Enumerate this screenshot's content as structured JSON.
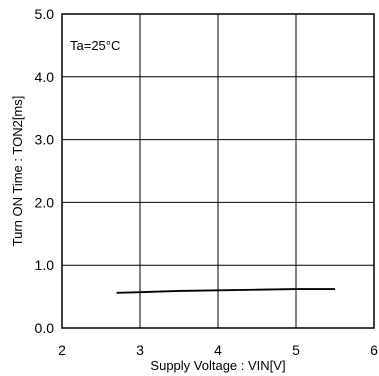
{
  "chart_data": {
    "type": "line",
    "xlabel": "Supply Voltage : VIN[V]",
    "ylabel": "Turn ON Time : TON2[ms]",
    "xlim": [
      2,
      6
    ],
    "ylim": [
      0.0,
      5.0
    ],
    "x_ticks": [
      "2",
      "3",
      "4",
      "5",
      "6"
    ],
    "y_ticks": [
      "0.0",
      "1.0",
      "2.0",
      "3.0",
      "4.0",
      "5.0"
    ],
    "grid": true,
    "annotation": "Ta=25°C",
    "series": [
      {
        "color": "#000000",
        "points": [
          {
            "x": 2.7,
            "y": 0.56
          },
          {
            "x": 3.0,
            "y": 0.57
          },
          {
            "x": 3.5,
            "y": 0.59
          },
          {
            "x": 4.0,
            "y": 0.6
          },
          {
            "x": 4.5,
            "y": 0.61
          },
          {
            "x": 5.0,
            "y": 0.62
          },
          {
            "x": 5.5,
            "y": 0.62
          }
        ]
      }
    ]
  }
}
